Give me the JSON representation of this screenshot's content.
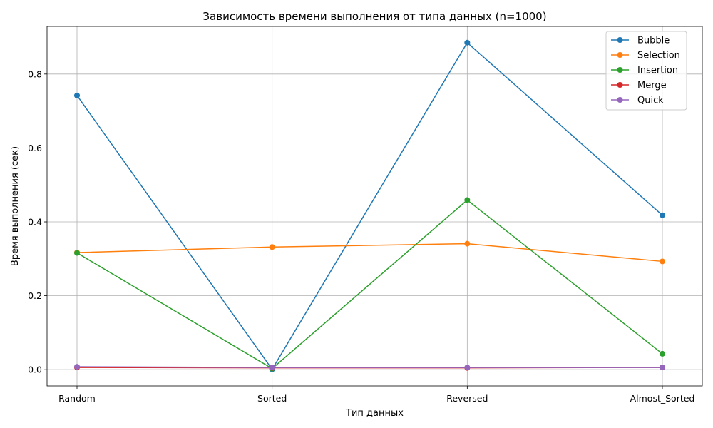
{
  "chart_data": {
    "type": "line",
    "title": "Зависимость времени выполнения от типа данных (n=1000)",
    "xlabel": "Тип данных",
    "ylabel": "Время выполнения (сек)",
    "categories": [
      "Random",
      "Sorted",
      "Reversed",
      "Almost_Sorted"
    ],
    "ylim": [
      -0.044,
      0.929
    ],
    "yticks": [
      "0.0",
      "0.2",
      "0.4",
      "0.6",
      "0.8"
    ],
    "grid": true,
    "legend_position": "top-right",
    "markers": "circle",
    "series": [
      {
        "name": "Bubble",
        "color": "#1f77b4",
        "values": [
          0.742,
          0.001,
          0.885,
          0.418
        ]
      },
      {
        "name": "Selection",
        "color": "#ff7f0e",
        "values": [
          0.317,
          0.332,
          0.341,
          0.293
        ]
      },
      {
        "name": "Insertion",
        "color": "#2ca02c",
        "values": [
          0.316,
          0.003,
          0.459,
          0.043
        ]
      },
      {
        "name": "Merge",
        "color": "#d62728",
        "values": [
          0.006,
          0.005,
          0.005,
          0.006
        ]
      },
      {
        "name": "Quick",
        "color": "#9467bd",
        "values": [
          0.008,
          0.006,
          0.006,
          0.006
        ]
      }
    ]
  }
}
